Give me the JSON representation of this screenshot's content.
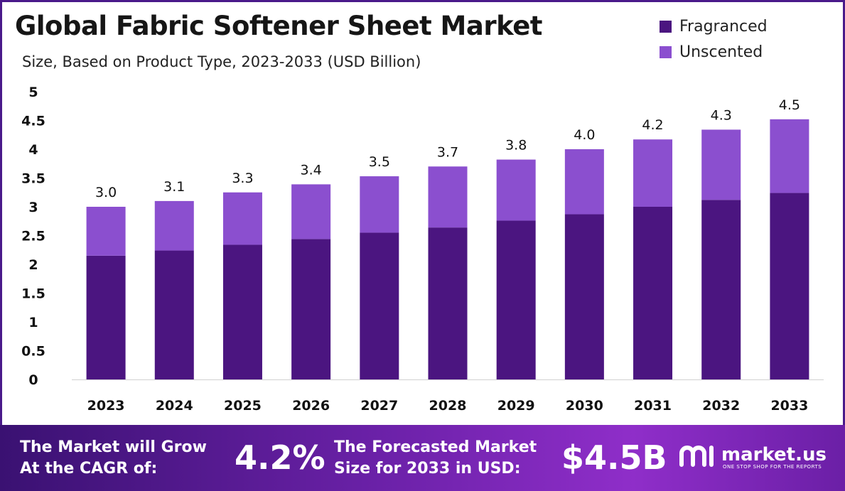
{
  "header": {
    "title": "Global Fabric Softener Sheet Market",
    "subtitle": "Size, Based on Product Type, 2023-2033 (USD Billion)"
  },
  "legend": [
    {
      "label": "Fragranced",
      "color": "#4b1580"
    },
    {
      "label": "Unscented",
      "color": "#8b4fcf"
    }
  ],
  "chart_data": {
    "type": "bar",
    "stacked": true,
    "title": "Global Fabric Softener Sheet Market",
    "subtitle": "Size, Based on Product Type, 2023-2033 (USD Billion)",
    "categories": [
      "2023",
      "2024",
      "2025",
      "2026",
      "2027",
      "2028",
      "2029",
      "2030",
      "2031",
      "2032",
      "2033"
    ],
    "series": [
      {
        "name": "Fragranced",
        "color": "#4b1580",
        "values": [
          2.15,
          2.24,
          2.34,
          2.44,
          2.55,
          2.64,
          2.76,
          2.87,
          3.0,
          3.12,
          3.24
        ]
      },
      {
        "name": "Unscented",
        "color": "#8b4fcf",
        "values": [
          0.85,
          0.86,
          0.91,
          0.95,
          0.98,
          1.06,
          1.06,
          1.13,
          1.17,
          1.22,
          1.28
        ]
      }
    ],
    "totals_labels": [
      "3.0",
      "3.1",
      "3.3",
      "3.4",
      "3.5",
      "3.7",
      "3.8",
      "4.0",
      "4.2",
      "4.3",
      "4.5"
    ],
    "y_ticks": [
      "0",
      "0.5",
      "1",
      "1.5",
      "2",
      "2.5",
      "3",
      "3.5",
      "4",
      "4.5",
      "5"
    ],
    "ylim": [
      0,
      5
    ],
    "xlabel": "",
    "ylabel": "",
    "grid": false,
    "legend_position": "top-right"
  },
  "banner": {
    "cagr_label_line1": "The Market will Grow",
    "cagr_label_line2": "At the CAGR of:",
    "cagr_value": "4.2%",
    "forecast_label_line1": "The Forecasted Market",
    "forecast_label_line2": "Size for 2033 in USD:",
    "forecast_value": "$4.5B",
    "brand_name": "market.us",
    "brand_tagline": "ONE STOP SHOP FOR THE REPORTS"
  }
}
